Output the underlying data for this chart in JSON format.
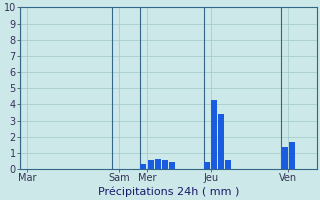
{
  "title": "Précipitations 24h ( mm )",
  "background_color": "#cce8e8",
  "bar_color": "#1a5ce0",
  "grid_color": "#a0c8c8",
  "ylim": [
    0,
    10
  ],
  "yticks": [
    0,
    1,
    2,
    3,
    4,
    5,
    6,
    7,
    8,
    9,
    10
  ],
  "day_labels": [
    "Mar",
    "Sam",
    "Mer",
    "Jeu",
    "Ven"
  ],
  "day_tick_positions": [
    0.5,
    13.5,
    17.5,
    26.5,
    37.5
  ],
  "day_vline_positions": [
    0,
    13,
    17,
    26,
    37
  ],
  "total_bars": 42,
  "bars": [
    0.0,
    0.0,
    0.0,
    0.0,
    0.0,
    0.0,
    0.0,
    0.0,
    0.0,
    0.0,
    0.0,
    0.0,
    0.0,
    0.0,
    0.0,
    0.0,
    0.0,
    0.3,
    0.55,
    0.6,
    0.55,
    0.45,
    0.0,
    0.0,
    0.0,
    0.0,
    0.45,
    4.3,
    3.4,
    0.55,
    0.0,
    0.0,
    0.0,
    0.0,
    0.0,
    0.0,
    0.0,
    1.35,
    1.65,
    0.0,
    0.0,
    0.0
  ],
  "xlabel_fontsize": 8,
  "ytick_fontsize": 7,
  "xtick_fontsize": 7,
  "spine_color": "#336688",
  "vline_color": "#336688"
}
